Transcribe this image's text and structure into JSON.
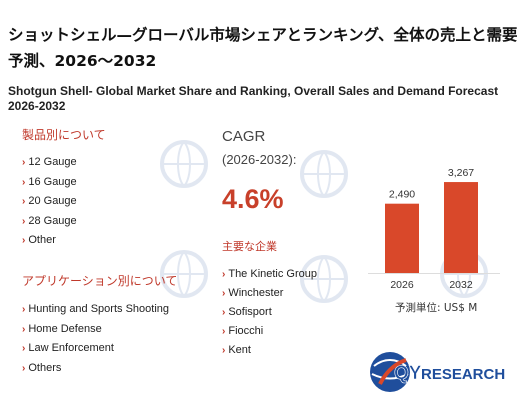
{
  "title_ja": "ショットシェル—グローバル市場シェアとランキング、全体の売上と需要予測、2026～2032",
  "title_en": "Shotgun Shell- Global Market Share and Ranking, Overall Sales and Demand Forecast 2026-2032",
  "product_section": {
    "heading": "製品別について",
    "items": [
      "12 Gauge",
      "16 Gauge",
      "20 Gauge",
      "28 Gauge",
      "Other"
    ]
  },
  "application_section": {
    "heading": "アプリケーション別について",
    "items": [
      "Hunting and Sports Shooting",
      "Home Defense",
      "Law Enforcement",
      "Others"
    ]
  },
  "cagr": {
    "label": "CAGR",
    "period": "(2026-2032):",
    "value": "4.6%"
  },
  "companies": {
    "heading": "主要な企業",
    "items": [
      "The Kinetic Group",
      "Winchester",
      "Sofisport",
      "Fiocchi",
      "Kent"
    ]
  },
  "unit_label": "予測単位:  US$ M",
  "logo": {
    "text_qy": "QY",
    "text_research": "RESEARCH"
  },
  "colors": {
    "accent": "#c0392b",
    "bar": "#d9482a",
    "logo_blue": "#1f4e9c"
  },
  "chart_data": {
    "type": "bar",
    "categories": [
      "2026",
      "2032"
    ],
    "values": [
      2490,
      3267
    ],
    "data_labels": [
      "2,490",
      "3,267"
    ],
    "ylim": [
      0,
      3700
    ],
    "grid": false,
    "legend": "none"
  }
}
